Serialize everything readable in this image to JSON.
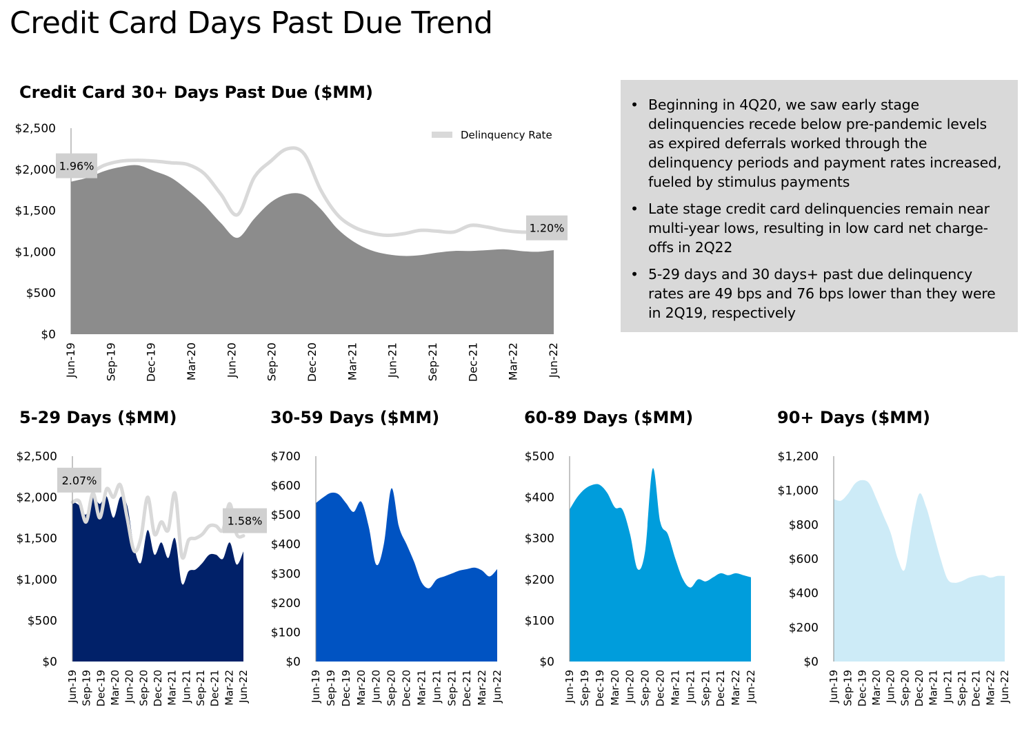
{
  "page_title": "Credit Card Days Past Due Trend",
  "bullets": [
    "Beginning in 4Q20, we saw early stage delinquencies recede below pre-pandemic levels as expired deferrals worked through the delinquency periods and payment rates increased, fueled by stimulus payments",
    "Late stage credit card delinquencies remain near multi-year lows, resulting in low card net charge-offs in 2Q22",
    "5-29 days and 30 days+ past due delinquency rates are 49 bps and 76 bps lower than they were in 2Q19, respectively"
  ],
  "bullet_marker": "•",
  "colors": {
    "main_area": "#8c8c8c",
    "rate_line": "#d9d9d9",
    "label_box": "#d0d0d0",
    "days_5_29": "#012169",
    "days_30_59": "#0053c2",
    "days_60_89": "#009ddc",
    "days_90_plus": "#cdebf7"
  },
  "chart_data": [
    {
      "id": "main",
      "type": "area",
      "title": "Credit Card 30+ Days Past Due ($MM)",
      "ylim": [
        0,
        2500
      ],
      "yticks": [
        "$0",
        "$500",
        "$1,000",
        "$1,500",
        "$2,000",
        "$2,500"
      ],
      "yticks_values": [
        0,
        500,
        1000,
        1500,
        2000,
        2500
      ],
      "x_labels": [
        "Jun-19",
        "Sep-19",
        "Dec-19",
        "Mar-20",
        "Jun-20",
        "Sep-20",
        "Dec-20",
        "Mar-21",
        "Jun-21",
        "Sep-21",
        "Dec-21",
        "Mar-22",
        "Jun-22"
      ],
      "values": [
        1850,
        1900,
        1980,
        2030,
        2050,
        1980,
        1900,
        1750,
        1570,
        1350,
        1170,
        1400,
        1600,
        1700,
        1690,
        1520,
        1280,
        1120,
        1020,
        970,
        950,
        960,
        990,
        1010,
        1010,
        1020,
        1030,
        1010,
        1000,
        1020
      ],
      "series": [
        {
          "name": "Delinquency Rate",
          "rate_line": [
            1960,
            1950,
            2050,
            2100,
            2110,
            2100,
            2080,
            2060,
            1950,
            1700,
            1450,
            1900,
            2100,
            2250,
            2190,
            1750,
            1450,
            1300,
            1230,
            1200,
            1220,
            1260,
            1250,
            1240,
            1320,
            1300,
            1260,
            1240,
            1240,
            1240
          ]
        }
      ],
      "rate_labels": [
        "1.96%",
        "1.20%"
      ],
      "legend": "Delinquency Rate",
      "legend_position": "top-right"
    },
    {
      "id": "d529",
      "type": "area",
      "title": "5-29 Days ($MM)",
      "ylim": [
        0,
        2500
      ],
      "yticks": [
        "$0",
        "$500",
        "$1,000",
        "$1,500",
        "$2,000",
        "$2,500"
      ],
      "yticks_values": [
        0,
        500,
        1000,
        1500,
        2000,
        2500
      ],
      "x_labels": [
        "Jun-19",
        "Sep-19",
        "Dec-19",
        "Mar-20",
        "Jun-20",
        "Sep-20",
        "Dec-20",
        "Mar-21",
        "Jun-21",
        "Sep-21",
        "Dec-21",
        "Mar-22",
        "Jun-22"
      ],
      "values": [
        1950,
        1900,
        1790,
        2000,
        1920,
        2010,
        1750,
        2000,
        1900,
        1400,
        1200,
        1600,
        1300,
        1450,
        1260,
        1500,
        950,
        1100,
        1120,
        1200,
        1300,
        1300,
        1250,
        1450,
        1180,
        1340
      ],
      "series": [
        {
          "name": "Delinquency Rate",
          "rate_line": [
            1940,
            1950,
            1700,
            2050,
            1750,
            2100,
            2000,
            2150,
            1750,
            1350,
            1500,
            2000,
            1550,
            1700,
            1600,
            2050,
            1280,
            1480,
            1500,
            1550,
            1650,
            1650,
            1600,
            1920,
            1550,
            1530
          ]
        }
      ],
      "rate_labels": [
        "2.07%",
        "1.58%"
      ]
    },
    {
      "id": "d3059",
      "type": "area",
      "title": "30-59 Days ($MM)",
      "ylim": [
        0,
        700
      ],
      "yticks": [
        "$0",
        "$100",
        "$200",
        "$300",
        "$400",
        "$500",
        "$600",
        "$700"
      ],
      "yticks_values": [
        0,
        100,
        200,
        300,
        400,
        500,
        600,
        700
      ],
      "x_labels": [
        "Jun-19",
        "Sep-19",
        "Dec-19",
        "Mar-20",
        "Jun-20",
        "Sep-20",
        "Dec-20",
        "Mar-21",
        "Jun-21",
        "Sep-21",
        "Dec-21",
        "Mar-22",
        "Jun-22"
      ],
      "values": [
        540,
        560,
        575,
        570,
        540,
        510,
        545,
        460,
        330,
        400,
        590,
        460,
        400,
        340,
        270,
        250,
        280,
        290,
        300,
        310,
        315,
        320,
        310,
        290,
        315
      ]
    },
    {
      "id": "d6089",
      "type": "area",
      "title": "60-89 Days ($MM)",
      "ylim": [
        0,
        500
      ],
      "yticks": [
        "$0",
        "$100",
        "$200",
        "$300",
        "$400",
        "$500"
      ],
      "yticks_values": [
        0,
        100,
        200,
        300,
        400,
        500
      ],
      "x_labels": [
        "Jun-19",
        "Sep-19",
        "Dec-19",
        "Mar-20",
        "Jun-20",
        "Sep-20",
        "Dec-20",
        "Mar-21",
        "Jun-21",
        "Sep-21",
        "Dec-21",
        "Mar-22",
        "Jun-22"
      ],
      "values": [
        370,
        400,
        420,
        430,
        430,
        410,
        375,
        370,
        310,
        225,
        270,
        470,
        340,
        310,
        250,
        200,
        180,
        200,
        195,
        205,
        215,
        210,
        215,
        210,
        205
      ]
    },
    {
      "id": "d90",
      "type": "area",
      "title": "90+ Days ($MM)",
      "ylim": [
        0,
        1200
      ],
      "yticks": [
        "$0",
        "$200",
        "$400",
        "$600",
        "$800",
        "$1,000",
        "$1,200"
      ],
      "yticks_values": [
        0,
        200,
        400,
        600,
        800,
        1000,
        1200
      ],
      "x_labels": [
        "Jun-19",
        "Sep-19",
        "Dec-19",
        "Mar-20",
        "Jun-20",
        "Sep-20",
        "Dec-20",
        "Mar-21",
        "Jun-21",
        "Sep-21",
        "Dec-21",
        "Mar-22",
        "Jun-22"
      ],
      "values": [
        950,
        940,
        980,
        1040,
        1060,
        1040,
        950,
        850,
        750,
        600,
        540,
        800,
        980,
        900,
        750,
        600,
        480,
        460,
        470,
        490,
        500,
        505,
        490,
        500,
        500
      ]
    }
  ]
}
